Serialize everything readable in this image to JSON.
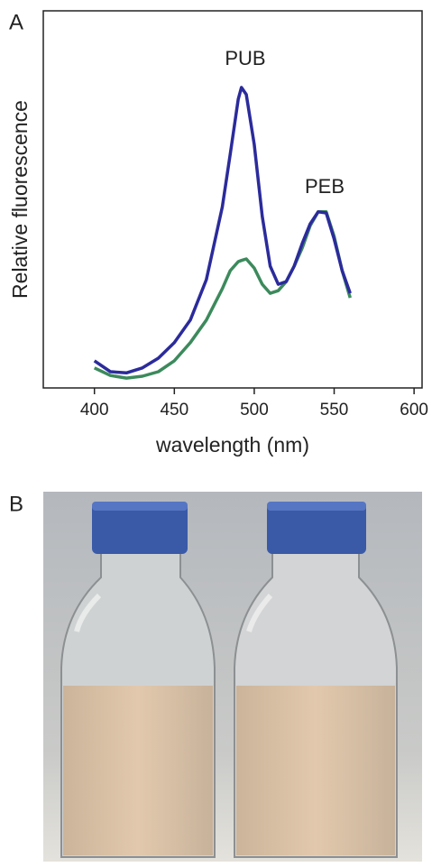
{
  "panel_labels": [
    "A",
    "B"
  ],
  "chart_data": {
    "type": "line",
    "xlabel": "wavelength (nm)",
    "ylabel": "Relative fluorescence",
    "annotations": [
      "PUB",
      "PEB"
    ],
    "x": [
      400,
      410,
      420,
      430,
      440,
      450,
      460,
      470,
      480,
      485,
      490,
      492,
      495,
      500,
      505,
      510,
      515,
      520,
      525,
      530,
      535,
      540,
      545,
      550,
      555,
      560
    ],
    "series": [
      {
        "color": "#2b2b9c",
        "values": [
          7.2,
          4.3,
          4,
          5.3,
          7.9,
          12,
          18,
          28.7,
          48,
          62,
          76.6,
          79.7,
          77.8,
          64.6,
          45.5,
          32.3,
          27.5,
          28.2,
          32.3,
          38.3,
          43.5,
          46.7,
          46.4,
          39.5,
          31.1,
          25.1
        ]
      },
      {
        "color": "#3c8a5c",
        "values": [
          5.3,
          3.3,
          2.6,
          3.1,
          4.3,
          7.2,
          12,
          18,
          26.3,
          31.1,
          33.5,
          33.8,
          34.2,
          31.8,
          27.5,
          25.1,
          25.8,
          28.2,
          32.3,
          37.1,
          43,
          46.7,
          46.7,
          40.2,
          31.1,
          23.9
        ]
      }
    ],
    "xlim": [
      368,
      605
    ],
    "xticks": [
      400,
      450,
      500,
      550,
      600
    ],
    "ylim": [
      0,
      100
    ]
  }
}
